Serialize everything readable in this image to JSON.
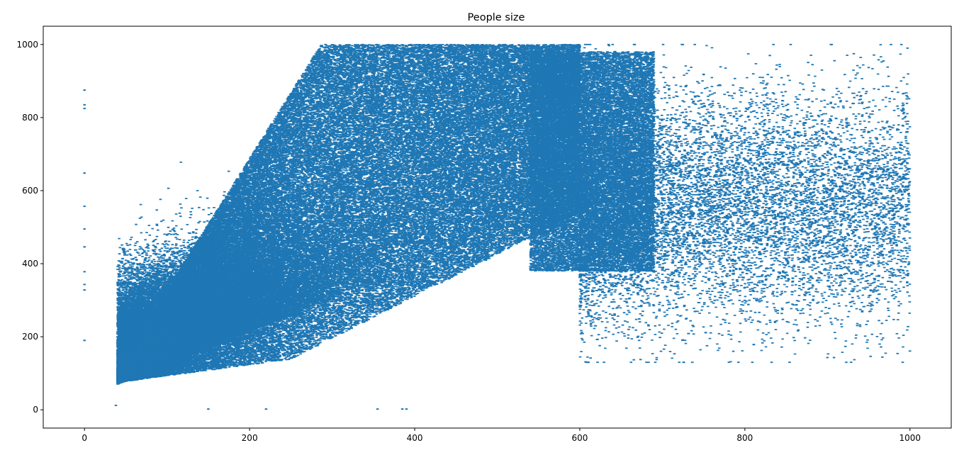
{
  "chart_data": {
    "type": "scatter",
    "title": "People size",
    "xlabel": "",
    "ylabel": "",
    "xlim": [
      -50,
      1050
    ],
    "ylim": [
      -50,
      1050
    ],
    "xticks": [
      0,
      200,
      400,
      600,
      800,
      1000
    ],
    "yticks": [
      0,
      200,
      400,
      600,
      800,
      1000
    ],
    "grid": false,
    "legend": "none",
    "marker_color": "#1f77b4",
    "estimated_point_count": 150000,
    "density_regions": [
      {
        "region": "dense core",
        "x_range": [
          40,
          660
        ],
        "y_range": [
          60,
          1000
        ]
      },
      {
        "region": "sparse tail",
        "x_range": [
          600,
          1000
        ],
        "y_range": [
          130,
          1000
        ]
      }
    ],
    "notable_points": [
      {
        "x": 0,
        "y": 875
      },
      {
        "x": 0,
        "y": 835
      },
      {
        "x": 0,
        "y": 825
      },
      {
        "x": 0,
        "y": 648
      },
      {
        "x": 0,
        "y": 557
      },
      {
        "x": 0,
        "y": 495
      },
      {
        "x": 0,
        "y": 446
      },
      {
        "x": 0,
        "y": 378
      },
      {
        "x": 0,
        "y": 343
      },
      {
        "x": 0,
        "y": 328
      },
      {
        "x": 0,
        "y": 190
      },
      {
        "x": 997,
        "y": 990
      },
      {
        "x": 962,
        "y": 958
      },
      {
        "x": 968,
        "y": 955
      },
      {
        "x": 995,
        "y": 748
      },
      {
        "x": 998,
        "y": 660
      },
      {
        "x": 997,
        "y": 322
      },
      {
        "x": 965,
        "y": 172
      },
      {
        "x": 908,
        "y": 143
      },
      {
        "x": 900,
        "y": 143
      },
      {
        "x": 38,
        "y": 12
      },
      {
        "x": 150,
        "y": 2
      },
      {
        "x": 220,
        "y": 2
      },
      {
        "x": 385,
        "y": 2
      },
      {
        "x": 390,
        "y": 2
      },
      {
        "x": 355,
        "y": 2
      }
    ]
  }
}
